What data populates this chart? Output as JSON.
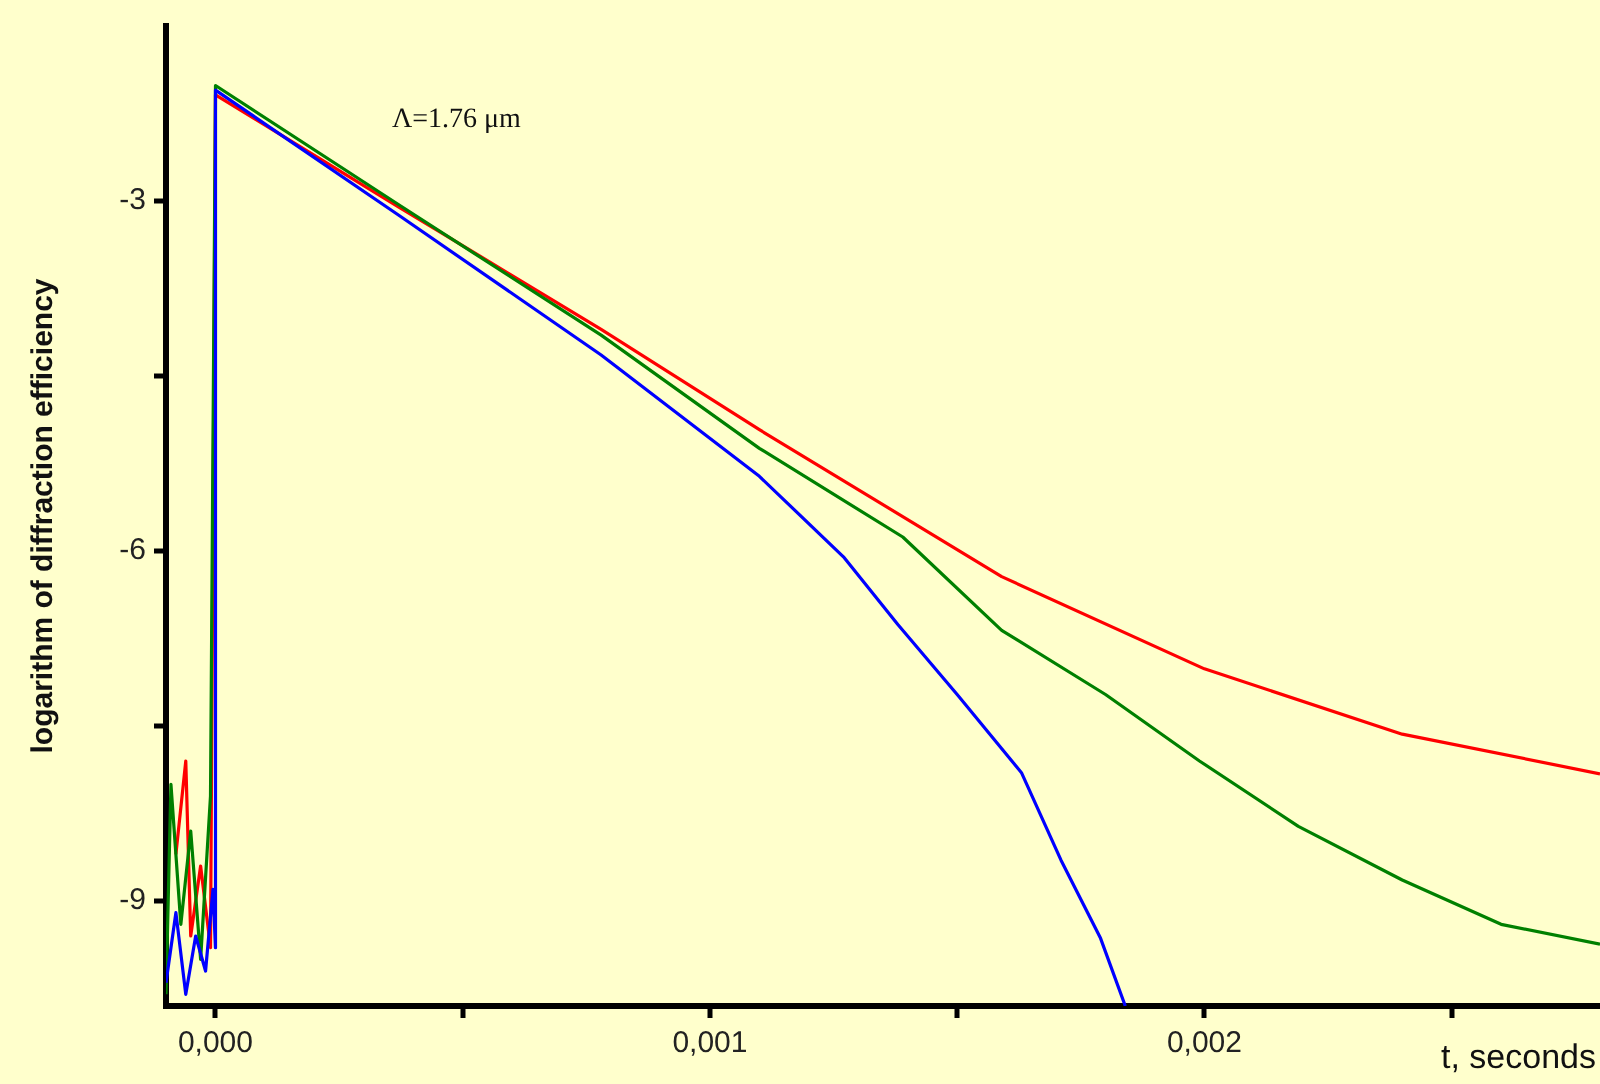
{
  "chart_data": {
    "type": "line",
    "xlabel": "t, seconds",
    "ylabel": "logarithm of diffraction efficiency",
    "annotations": [
      "Λ=1.76 μm"
    ],
    "xlim": [
      -0.0001,
      0.0028
    ],
    "ylim": [
      -9.9,
      -1.5
    ],
    "xticks": [
      {
        "value": 0,
        "label": "0,000"
      },
      {
        "value": 0.0005,
        "label": null
      },
      {
        "value": 0.001,
        "label": "0,001"
      },
      {
        "value": 0.0015,
        "label": null
      },
      {
        "value": 0.002,
        "label": "0,002"
      },
      {
        "value": 0.0025,
        "label": null
      }
    ],
    "yticks": [
      -3,
      {
        "value": -4.5,
        "label": null
      },
      -6,
      {
        "value": -7.5,
        "label": null
      },
      -9
    ],
    "grid": false,
    "legend": false,
    "series": [
      {
        "color": "#0000ff",
        "x": [
          -0.0001,
          -8e-05,
          -6e-05,
          -4e-05,
          -2e-05,
          -5e-06,
          0,
          1e-07,
          0.00037,
          0.00078,
          0.0011,
          0.00127,
          0.00138,
          0.0015,
          0.00163,
          0.00171,
          0.00179,
          0.00184
        ],
        "values": [
          -9.7,
          -9.1,
          -9.8,
          -9.3,
          -9.6,
          -8.9,
          -9.4,
          -2.05,
          -3.12,
          -4.32,
          -5.36,
          -6.05,
          -6.63,
          -7.23,
          -7.9,
          -8.65,
          -9.32,
          -9.9
        ]
      },
      {
        "color": "#008000",
        "x": [
          -0.0001,
          -9e-05,
          -7e-05,
          -5e-05,
          -3e-05,
          -1e-05,
          1e-07,
          0.00037,
          0.00078,
          0.0011,
          0.00139,
          0.00159,
          0.0018,
          0.00199,
          0.00219,
          0.0024,
          0.0026,
          0.0028
        ],
        "values": [
          -9.8,
          -8.0,
          -9.2,
          -8.4,
          -9.5,
          -8.1,
          -2.01,
          -3.03,
          -4.15,
          -5.12,
          -5.88,
          -6.68,
          -7.23,
          -7.8,
          -8.36,
          -8.82,
          -9.2,
          -9.37
        ]
      },
      {
        "color": "#ff0000",
        "x": [
          -8e-05,
          -6e-05,
          -5e-05,
          -3e-05,
          -1e-05,
          1e-07,
          0.00037,
          0.00078,
          0.0011,
          0.00159,
          0.002,
          0.0024,
          0.0028
        ],
        "values": [
          -8.6,
          -7.8,
          -9.3,
          -8.7,
          -9.4,
          -2.09,
          -3.05,
          -4.1,
          -4.96,
          -6.22,
          -7.01,
          -7.57,
          -7.91
        ]
      }
    ]
  }
}
